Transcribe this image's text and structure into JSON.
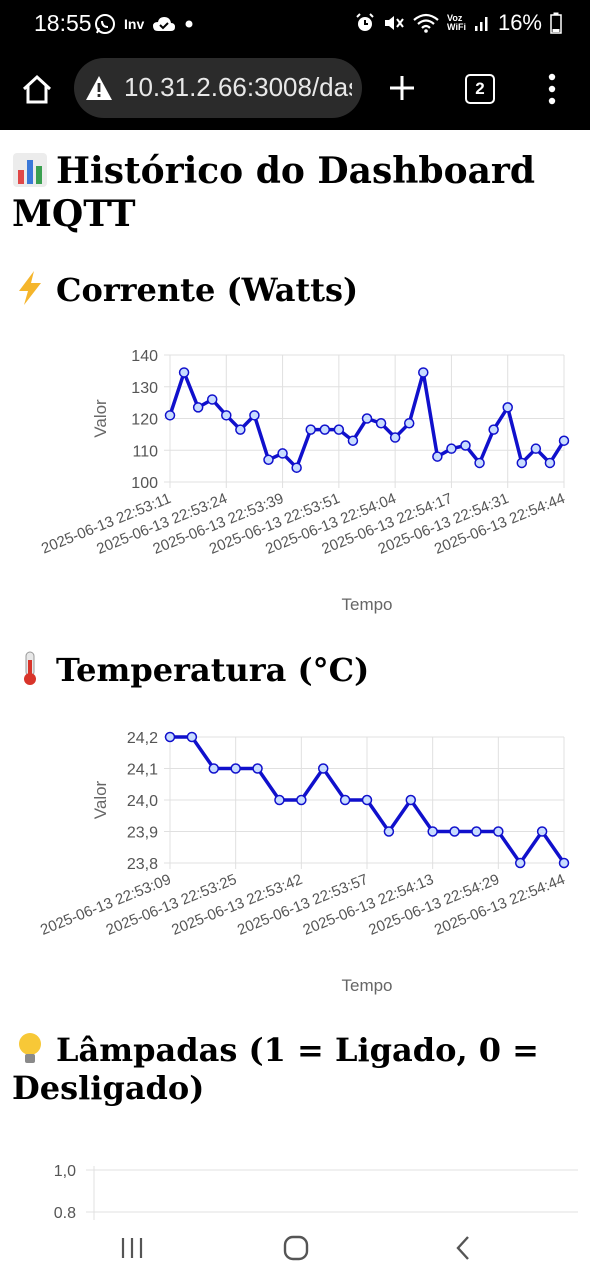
{
  "status_bar": {
    "time": "18:55",
    "left_badge": "Inv",
    "wifi_label_top": "Voz",
    "wifi_label_bottom": "WiFi",
    "battery": "16%"
  },
  "browser": {
    "url": "10.31.2.66:3008/das",
    "tab_count": "2"
  },
  "page": {
    "title": "Histórico do Dashboard MQTT"
  },
  "colors": {
    "line": "#1010cc",
    "point_fill": "#c8dcff",
    "grid": "#e0e0e0"
  },
  "chart_data": [
    {
      "type": "line",
      "title": "Corrente (Watts)",
      "icon": "lightning-icon",
      "xlabel": "Tempo",
      "ylabel": "Valor",
      "ylim": [
        100,
        140
      ],
      "yticks": [
        100,
        110,
        120,
        130,
        140
      ],
      "ytick_labels": [
        "100",
        "110",
        "120",
        "130",
        "140"
      ],
      "xtick_labels": [
        "2025-06-13 22:53:11",
        "2025-06-13 22:53:24",
        "2025-06-13 22:53:39",
        "2025-06-13 22:53:51",
        "2025-06-13 22:54:04",
        "2025-06-13 22:54:17",
        "2025-06-13 22:54:31",
        "2025-06-13 22:54:44"
      ],
      "values": [
        121,
        134.5,
        123.5,
        126,
        121,
        116.5,
        121,
        107,
        109,
        104.5,
        116.5,
        116.5,
        116.5,
        113,
        120,
        118.5,
        114,
        118.5,
        134.5,
        108,
        110.5,
        111.5,
        106,
        116.5,
        123.5,
        106,
        110.5,
        106,
        113
      ]
    },
    {
      "type": "line",
      "title": "Temperatura (°C)",
      "icon": "thermometer-icon",
      "xlabel": "Tempo",
      "ylabel": "Valor",
      "ylim": [
        23.8,
        24.2
      ],
      "yticks": [
        23.8,
        23.9,
        24.0,
        24.1,
        24.2
      ],
      "ytick_labels": [
        "23,8",
        "23,9",
        "24,0",
        "24,1",
        "24,2"
      ],
      "xtick_labels": [
        "2025-06-13 22:53:09",
        "2025-06-13 22:53:25",
        "2025-06-13 22:53:42",
        "2025-06-13 22:53:57",
        "2025-06-13 22:54:13",
        "2025-06-13 22:54:29",
        "2025-06-13 22:54:44"
      ],
      "values": [
        24.2,
        24.2,
        24.1,
        24.1,
        24.1,
        24.0,
        24.0,
        24.1,
        24.0,
        24.0,
        23.9,
        24.0,
        23.9,
        23.9,
        23.9,
        23.9,
        23.8,
        23.9,
        23.8
      ]
    },
    {
      "type": "line",
      "title": "Lâmpadas (1 = Ligado, 0 = Desligado)",
      "icon": "lightbulb-icon",
      "ylim": [
        0,
        1
      ],
      "ytick_labels": [
        "1,0",
        "0.8"
      ]
    }
  ]
}
